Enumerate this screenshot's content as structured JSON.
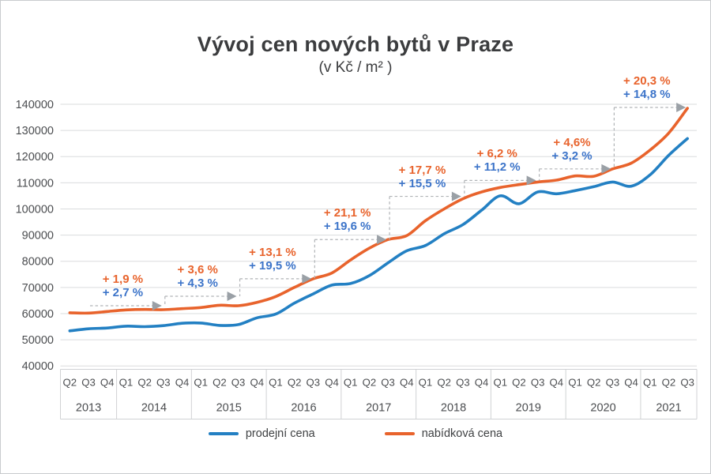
{
  "title": "Vývoj cen nových bytů v Praze",
  "subtitle": "(v Kč / m² )",
  "legend": {
    "items": [
      {
        "label": "prodejní cena"
      },
      {
        "label": "nabídková cena"
      }
    ]
  },
  "chart_data": {
    "type": "line",
    "unit": "Kč / m²",
    "ylim": [
      40000,
      140000
    ],
    "ytick_step": 10000,
    "grid": true,
    "legend_position": "bottom",
    "x_groups": [
      {
        "year": "2013",
        "quarters": [
          "Q2",
          "Q3",
          "Q4"
        ]
      },
      {
        "year": "2014",
        "quarters": [
          "Q1",
          "Q2",
          "Q3",
          "Q4"
        ]
      },
      {
        "year": "2015",
        "quarters": [
          "Q1",
          "Q2",
          "Q3",
          "Q4"
        ]
      },
      {
        "year": "2016",
        "quarters": [
          "Q1",
          "Q2",
          "Q3",
          "Q4"
        ]
      },
      {
        "year": "2017",
        "quarters": [
          "Q1",
          "Q2",
          "Q3",
          "Q4"
        ]
      },
      {
        "year": "2018",
        "quarters": [
          "Q1",
          "Q2",
          "Q3",
          "Q4"
        ]
      },
      {
        "year": "2019",
        "quarters": [
          "Q1",
          "Q2",
          "Q3",
          "Q4"
        ]
      },
      {
        "year": "2020",
        "quarters": [
          "Q1",
          "Q2",
          "Q3",
          "Q4"
        ]
      },
      {
        "year": "2021",
        "quarters": [
          "Q1",
          "Q2",
          "Q3"
        ]
      }
    ],
    "categories": [
      "2013 Q2",
      "2013 Q3",
      "2013 Q4",
      "2014 Q1",
      "2014 Q2",
      "2014 Q3",
      "2014 Q4",
      "2015 Q1",
      "2015 Q2",
      "2015 Q3",
      "2015 Q4",
      "2016 Q1",
      "2016 Q2",
      "2016 Q3",
      "2016 Q4",
      "2017 Q1",
      "2017 Q2",
      "2017 Q3",
      "2017 Q4",
      "2018 Q1",
      "2018 Q2",
      "2018 Q3",
      "2018 Q4",
      "2019 Q1",
      "2019 Q2",
      "2019 Q3",
      "2019 Q4",
      "2020 Q1",
      "2020 Q2",
      "2020 Q3",
      "2020 Q4",
      "2021 Q1",
      "2021 Q2",
      "2021 Q3"
    ],
    "series": [
      {
        "name": "prodejní cena",
        "color": "#2380c3",
        "values": [
          53400,
          54200,
          54500,
          55200,
          55000,
          55400,
          56300,
          56400,
          55500,
          55800,
          58400,
          59800,
          64000,
          67500,
          70900,
          71500,
          74500,
          79400,
          84000,
          86000,
          90500,
          94000,
          99500,
          105000,
          102000,
          106500,
          105800,
          107000,
          108500,
          110300,
          108700,
          113000,
          120500,
          126900
        ]
      },
      {
        "name": "nabídková cena",
        "color": "#e8632c",
        "values": [
          60300,
          60200,
          60800,
          61400,
          61600,
          61500,
          61900,
          62300,
          63200,
          63000,
          64300,
          66500,
          70000,
          73300,
          75500,
          80500,
          85000,
          88300,
          89800,
          95500,
          100000,
          103900,
          106500,
          108200,
          109300,
          110300,
          111000,
          112600,
          112500,
          115300,
          117500,
          122500,
          129000,
          138500
        ]
      }
    ],
    "annotations": [
      {
        "year": "2014",
        "nabidkova": "+ 1,9 %",
        "prodejni": "+ 2,7 %"
      },
      {
        "year": "2015",
        "nabidkova": "+ 3,6 %",
        "prodejni": "+ 4,3 %"
      },
      {
        "year": "2016",
        "nabidkova": "+ 13,1 %",
        "prodejni": "+ 19,5 %"
      },
      {
        "year": "2017",
        "nabidkova": "+ 21,1 %",
        "prodejni": "+ 19,6 %"
      },
      {
        "year": "2018",
        "nabidkova": "+ 17,7 %",
        "prodejni": "+ 15,5 %"
      },
      {
        "year": "2019",
        "nabidkova": "+ 6,2 %",
        "prodejni": "+ 11,2 %"
      },
      {
        "year": "2020",
        "nabidkova": "+ 4,6%",
        "prodejni": "+ 3,2 %"
      },
      {
        "year": "2021",
        "nabidkova": "+ 20,3 %",
        "prodejni": "+ 14,8 %"
      }
    ],
    "annotation_colors": {
      "nabidkova": "#e8632c",
      "prodejni": "#3c74c9"
    },
    "grid_color": "#dadcdd",
    "axis_text_color": "#4b4d50",
    "step_line_color": "#b0b3b6",
    "arrow_color": "#9aa0a6"
  }
}
